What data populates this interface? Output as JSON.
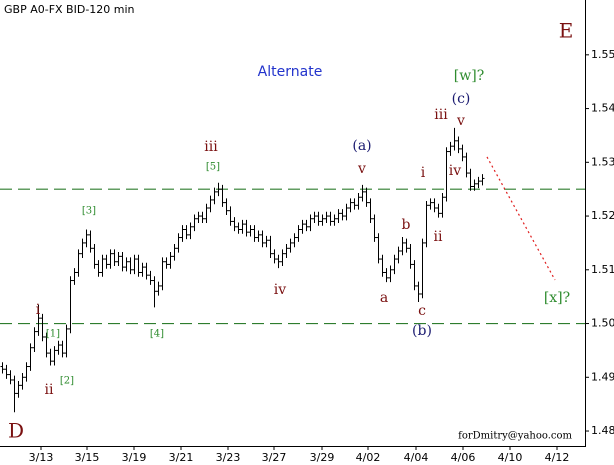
{
  "chart_data": {
    "type": "ohlc",
    "title": "GBP A0-FX BID-120 min",
    "footer": "forDmitry@yahoo.com",
    "bar_color": "#000000",
    "xlim": [
      -0.5,
      145.75
    ],
    "xticks": [
      {
        "value": 9.75,
        "label": "3/13"
      },
      {
        "value": 21.25,
        "label": "3/15"
      },
      {
        "value": 33,
        "label": "3/19"
      },
      {
        "value": 44.75,
        "label": "3/21"
      },
      {
        "value": 56.5,
        "label": "3/23"
      },
      {
        "value": 68,
        "label": "3/27"
      },
      {
        "value": 80,
        "label": "3/29"
      },
      {
        "value": 91.5,
        "label": "4/02"
      },
      {
        "value": 103.5,
        "label": "4/04"
      },
      {
        "value": 115.25,
        "label": "4/06"
      },
      {
        "value": 127,
        "label": "4/10"
      },
      {
        "value": 138.75,
        "label": "4/12"
      }
    ],
    "ylim": [
      1.4774,
      1.5602
    ],
    "yticks": [
      {
        "value": 1.48,
        "label": "1.480"
      },
      {
        "value": 1.49,
        "label": "1.490"
      },
      {
        "value": 1.5,
        "label": "1.500"
      },
      {
        "value": 1.51,
        "label": "1.510"
      },
      {
        "value": 1.52,
        "label": "1.520"
      },
      {
        "value": 1.53,
        "label": "1.530"
      },
      {
        "value": 1.54,
        "label": "1.540"
      },
      {
        "value": 1.55,
        "label": "1.550"
      }
    ],
    "hlines": [
      {
        "value": 1.525,
        "color": "#2e7d2e"
      },
      {
        "value": 1.5,
        "color": "#2e7d2e"
      }
    ],
    "forecast": {
      "x": [
        121.25,
        138.25
      ],
      "y": [
        1.531,
        1.5081
      ],
      "color": "#e02020"
    },
    "ohlc": [
      [
        1.492,
        1.4928,
        1.4907,
        1.4915
      ],
      [
        1.4915,
        1.4923,
        1.4897,
        1.4905
      ],
      [
        1.4905,
        1.4913,
        1.4887,
        1.4895
      ],
      [
        1.4895,
        1.4903,
        1.4835,
        1.487
      ],
      [
        1.487,
        1.4893,
        1.4862,
        1.4885
      ],
      [
        1.4885,
        1.4908,
        1.4877,
        1.49
      ],
      [
        1.49,
        1.4928,
        1.4892,
        1.492
      ],
      [
        1.492,
        1.4963,
        1.4912,
        1.4955
      ],
      [
        1.4955,
        1.4993,
        1.4947,
        1.4985
      ],
      [
        1.4985,
        1.5035,
        1.4977,
        1.501
      ],
      [
        1.501,
        1.5018,
        1.4967,
        1.4975
      ],
      [
        1.4975,
        1.4983,
        1.4937,
        1.4945
      ],
      [
        1.4945,
        1.4953,
        1.4922,
        1.493
      ],
      [
        1.493,
        1.4958,
        1.4922,
        1.495
      ],
      [
        1.495,
        1.4968,
        1.4942,
        1.496
      ],
      [
        1.496,
        1.4968,
        1.4937,
        1.4945
      ],
      [
        1.4945,
        1.4998,
        1.4937,
        1.499
      ],
      [
        1.499,
        1.5088,
        1.4982,
        1.508
      ],
      [
        1.508,
        1.5103,
        1.5072,
        1.5095
      ],
      [
        1.5095,
        1.5138,
        1.5087,
        1.513
      ],
      [
        1.513,
        1.5158,
        1.5122,
        1.515
      ],
      [
        1.515,
        1.5175,
        1.5142,
        1.5165
      ],
      [
        1.5165,
        1.5173,
        1.5132,
        1.514
      ],
      [
        1.514,
        1.5148,
        1.5102,
        1.511
      ],
      [
        1.511,
        1.5118,
        1.5087,
        1.5095
      ],
      [
        1.5095,
        1.5128,
        1.5087,
        1.512
      ],
      [
        1.512,
        1.5128,
        1.5102,
        1.511
      ],
      [
        1.511,
        1.5138,
        1.5102,
        1.513
      ],
      [
        1.513,
        1.5138,
        1.5107,
        1.5115
      ],
      [
        1.5115,
        1.5133,
        1.5107,
        1.5125
      ],
      [
        1.5125,
        1.5133,
        1.5097,
        1.5105
      ],
      [
        1.5105,
        1.5123,
        1.5097,
        1.5115
      ],
      [
        1.5115,
        1.5123,
        1.5092,
        1.51
      ],
      [
        1.51,
        1.5128,
        1.5092,
        1.512
      ],
      [
        1.512,
        1.5128,
        1.5087,
        1.5095
      ],
      [
        1.5095,
        1.5113,
        1.5087,
        1.5105
      ],
      [
        1.5105,
        1.5113,
        1.5082,
        1.509
      ],
      [
        1.509,
        1.5098,
        1.5072,
        1.508
      ],
      [
        1.508,
        1.5088,
        1.503,
        1.506
      ],
      [
        1.506,
        1.5078,
        1.5052,
        1.507
      ],
      [
        1.507,
        1.5123,
        1.5062,
        1.5115
      ],
      [
        1.5115,
        1.5123,
        1.5102,
        1.511
      ],
      [
        1.511,
        1.5133,
        1.5102,
        1.5125
      ],
      [
        1.5125,
        1.5148,
        1.5117,
        1.514
      ],
      [
        1.514,
        1.5168,
        1.5132,
        1.516
      ],
      [
        1.516,
        1.5183,
        1.5152,
        1.5175
      ],
      [
        1.5175,
        1.5183,
        1.5157,
        1.5165
      ],
      [
        1.5165,
        1.5188,
        1.5157,
        1.518
      ],
      [
        1.518,
        1.5203,
        1.5172,
        1.5195
      ],
      [
        1.5195,
        1.5208,
        1.5187,
        1.52
      ],
      [
        1.52,
        1.5208,
        1.5187,
        1.5195
      ],
      [
        1.5195,
        1.5223,
        1.5187,
        1.5215
      ],
      [
        1.5215,
        1.5238,
        1.5207,
        1.523
      ],
      [
        1.523,
        1.5253,
        1.5222,
        1.5245
      ],
      [
        1.5245,
        1.5262,
        1.5237,
        1.525
      ],
      [
        1.525,
        1.5258,
        1.5217,
        1.5225
      ],
      [
        1.5225,
        1.5233,
        1.5202,
        1.521
      ],
      [
        1.521,
        1.5218,
        1.5182,
        1.519
      ],
      [
        1.519,
        1.5198,
        1.5172,
        1.518
      ],
      [
        1.518,
        1.5188,
        1.5167,
        1.5175
      ],
      [
        1.5175,
        1.5193,
        1.5167,
        1.5185
      ],
      [
        1.5185,
        1.5193,
        1.5162,
        1.517
      ],
      [
        1.517,
        1.5183,
        1.5162,
        1.5175
      ],
      [
        1.5175,
        1.5183,
        1.5152,
        1.516
      ],
      [
        1.516,
        1.5173,
        1.5152,
        1.5165
      ],
      [
        1.5165,
        1.5173,
        1.5142,
        1.515
      ],
      [
        1.515,
        1.5163,
        1.5142,
        1.5155
      ],
      [
        1.5155,
        1.5163,
        1.5122,
        1.513
      ],
      [
        1.513,
        1.5138,
        1.5112,
        1.512
      ],
      [
        1.512,
        1.5128,
        1.5103,
        1.5115
      ],
      [
        1.5115,
        1.5138,
        1.5107,
        1.513
      ],
      [
        1.513,
        1.5148,
        1.5122,
        1.514
      ],
      [
        1.514,
        1.5158,
        1.5132,
        1.515
      ],
      [
        1.515,
        1.5168,
        1.5142,
        1.516
      ],
      [
        1.516,
        1.5183,
        1.5152,
        1.5175
      ],
      [
        1.5175,
        1.5193,
        1.5167,
        1.5185
      ],
      [
        1.5185,
        1.5193,
        1.5172,
        1.518
      ],
      [
        1.518,
        1.5203,
        1.5172,
        1.5195
      ],
      [
        1.5195,
        1.5208,
        1.5187,
        1.52
      ],
      [
        1.52,
        1.5208,
        1.5182,
        1.519
      ],
      [
        1.519,
        1.5203,
        1.5182,
        1.5195
      ],
      [
        1.5195,
        1.5208,
        1.5187,
        1.52
      ],
      [
        1.52,
        1.5208,
        1.5182,
        1.519
      ],
      [
        1.519,
        1.5203,
        1.5182,
        1.5195
      ],
      [
        1.5195,
        1.5213,
        1.5187,
        1.5205
      ],
      [
        1.5205,
        1.5213,
        1.5192,
        1.52
      ],
      [
        1.52,
        1.5223,
        1.5192,
        1.5215
      ],
      [
        1.5215,
        1.5233,
        1.5207,
        1.5225
      ],
      [
        1.5225,
        1.5233,
        1.5212,
        1.522
      ],
      [
        1.522,
        1.5243,
        1.5212,
        1.5235
      ],
      [
        1.5235,
        1.5258,
        1.5227,
        1.5245
      ],
      [
        1.5245,
        1.5253,
        1.5217,
        1.5225
      ],
      [
        1.5225,
        1.5233,
        1.5187,
        1.5195
      ],
      [
        1.5195,
        1.5203,
        1.5152,
        1.516
      ],
      [
        1.516,
        1.5168,
        1.5112,
        1.512
      ],
      [
        1.512,
        1.5128,
        1.5087,
        1.5095
      ],
      [
        1.5095,
        1.5103,
        1.5077,
        1.5085
      ],
      [
        1.5085,
        1.5108,
        1.5077,
        1.51
      ],
      [
        1.51,
        1.5128,
        1.5092,
        1.512
      ],
      [
        1.512,
        1.5143,
        1.5112,
        1.5135
      ],
      [
        1.5135,
        1.5161,
        1.5127,
        1.515
      ],
      [
        1.515,
        1.5158,
        1.5132,
        1.514
      ],
      [
        1.514,
        1.5148,
        1.5102,
        1.511
      ],
      [
        1.511,
        1.5118,
        1.5062,
        1.507
      ],
      [
        1.507,
        1.5078,
        1.504,
        1.5055
      ],
      [
        1.5055,
        1.5158,
        1.5047,
        1.515
      ],
      [
        1.515,
        1.5228,
        1.5142,
        1.522
      ],
      [
        1.522,
        1.5233,
        1.5212,
        1.5225
      ],
      [
        1.5225,
        1.5233,
        1.5207,
        1.5215
      ],
      [
        1.5215,
        1.5223,
        1.5197,
        1.5205
      ],
      [
        1.5205,
        1.5243,
        1.5197,
        1.5235
      ],
      [
        1.5235,
        1.5328,
        1.5227,
        1.532
      ],
      [
        1.532,
        1.5338,
        1.5312,
        1.533
      ],
      [
        1.533,
        1.5364,
        1.5322,
        1.534
      ],
      [
        1.534,
        1.5348,
        1.5317,
        1.5325
      ],
      [
        1.5325,
        1.5333,
        1.5302,
        1.531
      ],
      [
        1.531,
        1.5318,
        1.5272,
        1.528
      ],
      [
        1.528,
        1.5288,
        1.5247,
        1.5255
      ],
      [
        1.5255,
        1.5268,
        1.5247,
        1.526
      ],
      [
        1.526,
        1.5273,
        1.5252,
        1.5265
      ],
      [
        1.5265,
        1.5278,
        1.5257,
        1.527
      ]
    ],
    "annotations": [
      {
        "text": "D",
        "color": "#7a1010"
      },
      {
        "text": "E",
        "color": "#7a1010"
      },
      {
        "text": "Alternate",
        "color": "#2233cc"
      },
      {
        "text": "i",
        "color": "#7a1010"
      },
      {
        "text": "ii",
        "color": "#7a1010"
      },
      {
        "text": "[1]",
        "color": "#2e8b2e"
      },
      {
        "text": "[2]",
        "color": "#2e8b2e"
      },
      {
        "text": "[3]",
        "color": "#2e8b2e"
      },
      {
        "text": "[4]",
        "color": "#2e8b2e"
      },
      {
        "text": "[5]",
        "color": "#2e8b2e"
      },
      {
        "text": "iii",
        "color": "#7a1010"
      },
      {
        "text": "iv",
        "color": "#7a1010"
      },
      {
        "text": "(a)",
        "color": "#1a1a70"
      },
      {
        "text": "v",
        "color": "#7a1010"
      },
      {
        "text": "a",
        "color": "#7a1010"
      },
      {
        "text": "b",
        "color": "#7a1010"
      },
      {
        "text": "c",
        "color": "#7a1010"
      },
      {
        "text": "(b)",
        "color": "#1a1a70"
      },
      {
        "text": "i",
        "color": "#7a1010"
      },
      {
        "text": "ii",
        "color": "#7a1010"
      },
      {
        "text": "iii",
        "color": "#7a1010"
      },
      {
        "text": "v",
        "color": "#7a1010"
      },
      {
        "text": "iv",
        "color": "#7a1010"
      },
      {
        "text": "(c)",
        "color": "#1a1a70"
      },
      {
        "text": "[w]?",
        "color": "#2e8b2e"
      },
      {
        "text": "[x]?",
        "color": "#2e8b2e"
      }
    ]
  }
}
